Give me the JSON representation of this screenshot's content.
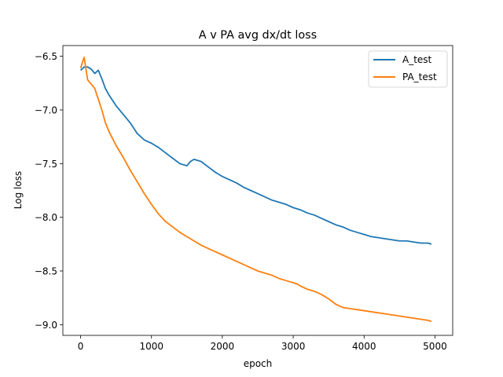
{
  "chart_data": {
    "type": "line",
    "title": "A v PA avg dx/dt loss",
    "xlabel": "epoch",
    "ylabel": "Log loss",
    "xlim": [
      -250,
      5250
    ],
    "ylim": [
      -9.1,
      -6.4
    ],
    "xticks": [
      0,
      1000,
      2000,
      3000,
      4000,
      5000
    ],
    "xtick_labels": [
      "0",
      "1000",
      "2000",
      "3000",
      "4000",
      "5000"
    ],
    "yticks": [
      -9.0,
      -8.5,
      -8.0,
      -7.5,
      -7.0,
      -6.5
    ],
    "ytick_labels": [
      "−9.0",
      "−8.5",
      "−8.0",
      "−7.5",
      "−7.0",
      "−6.5"
    ],
    "grid": false,
    "legend_position": "upper right",
    "series": [
      {
        "name": "A_test",
        "color": "#1f77b4",
        "x": [
          0,
          50,
          100,
          150,
          200,
          250,
          300,
          350,
          400,
          500,
          600,
          700,
          800,
          900,
          1000,
          1100,
          1200,
          1300,
          1400,
          1500,
          1550,
          1600,
          1650,
          1700,
          1800,
          1900,
          2000,
          2100,
          2200,
          2300,
          2400,
          2500,
          2600,
          2700,
          2800,
          2900,
          3000,
          3100,
          3200,
          3300,
          3400,
          3500,
          3600,
          3700,
          3800,
          3900,
          4000,
          4100,
          4200,
          4300,
          4400,
          4500,
          4600,
          4700,
          4800,
          4900,
          4950
        ],
        "y": [
          -6.63,
          -6.6,
          -6.6,
          -6.62,
          -6.66,
          -6.63,
          -6.71,
          -6.8,
          -6.86,
          -6.96,
          -7.04,
          -7.12,
          -7.22,
          -7.28,
          -7.31,
          -7.35,
          -7.4,
          -7.45,
          -7.5,
          -7.52,
          -7.48,
          -7.46,
          -7.47,
          -7.48,
          -7.53,
          -7.58,
          -7.62,
          -7.65,
          -7.68,
          -7.72,
          -7.75,
          -7.78,
          -7.81,
          -7.84,
          -7.86,
          -7.88,
          -7.91,
          -7.93,
          -7.96,
          -7.98,
          -8.01,
          -8.04,
          -8.07,
          -8.09,
          -8.12,
          -8.14,
          -8.16,
          -8.18,
          -8.19,
          -8.2,
          -8.21,
          -8.22,
          -8.22,
          -8.23,
          -8.24,
          -8.24,
          -8.25
        ]
      },
      {
        "name": "PA_test",
        "color": "#ff7f0e",
        "x": [
          0,
          50,
          100,
          150,
          200,
          250,
          300,
          350,
          400,
          500,
          600,
          700,
          800,
          900,
          1000,
          1100,
          1200,
          1300,
          1400,
          1500,
          1600,
          1700,
          1800,
          1900,
          2000,
          2100,
          2200,
          2300,
          2400,
          2500,
          2600,
          2700,
          2800,
          2900,
          3000,
          3050,
          3100,
          3200,
          3300,
          3400,
          3500,
          3600,
          3700,
          3800,
          3900,
          4000,
          4100,
          4200,
          4300,
          4400,
          4500,
          4600,
          4700,
          4800,
          4900,
          4950
        ],
        "y": [
          -6.61,
          -6.51,
          -6.72,
          -6.76,
          -6.8,
          -6.9,
          -7.0,
          -7.12,
          -7.2,
          -7.33,
          -7.44,
          -7.56,
          -7.67,
          -7.78,
          -7.88,
          -7.97,
          -8.04,
          -8.09,
          -8.14,
          -8.18,
          -8.22,
          -8.26,
          -8.29,
          -8.32,
          -8.35,
          -8.38,
          -8.41,
          -8.44,
          -8.47,
          -8.5,
          -8.52,
          -8.54,
          -8.57,
          -8.59,
          -8.61,
          -8.62,
          -8.64,
          -8.67,
          -8.69,
          -8.72,
          -8.76,
          -8.81,
          -8.84,
          -8.85,
          -8.86,
          -8.87,
          -8.88,
          -8.89,
          -8.9,
          -8.91,
          -8.92,
          -8.93,
          -8.94,
          -8.95,
          -8.96,
          -8.97
        ]
      }
    ]
  }
}
